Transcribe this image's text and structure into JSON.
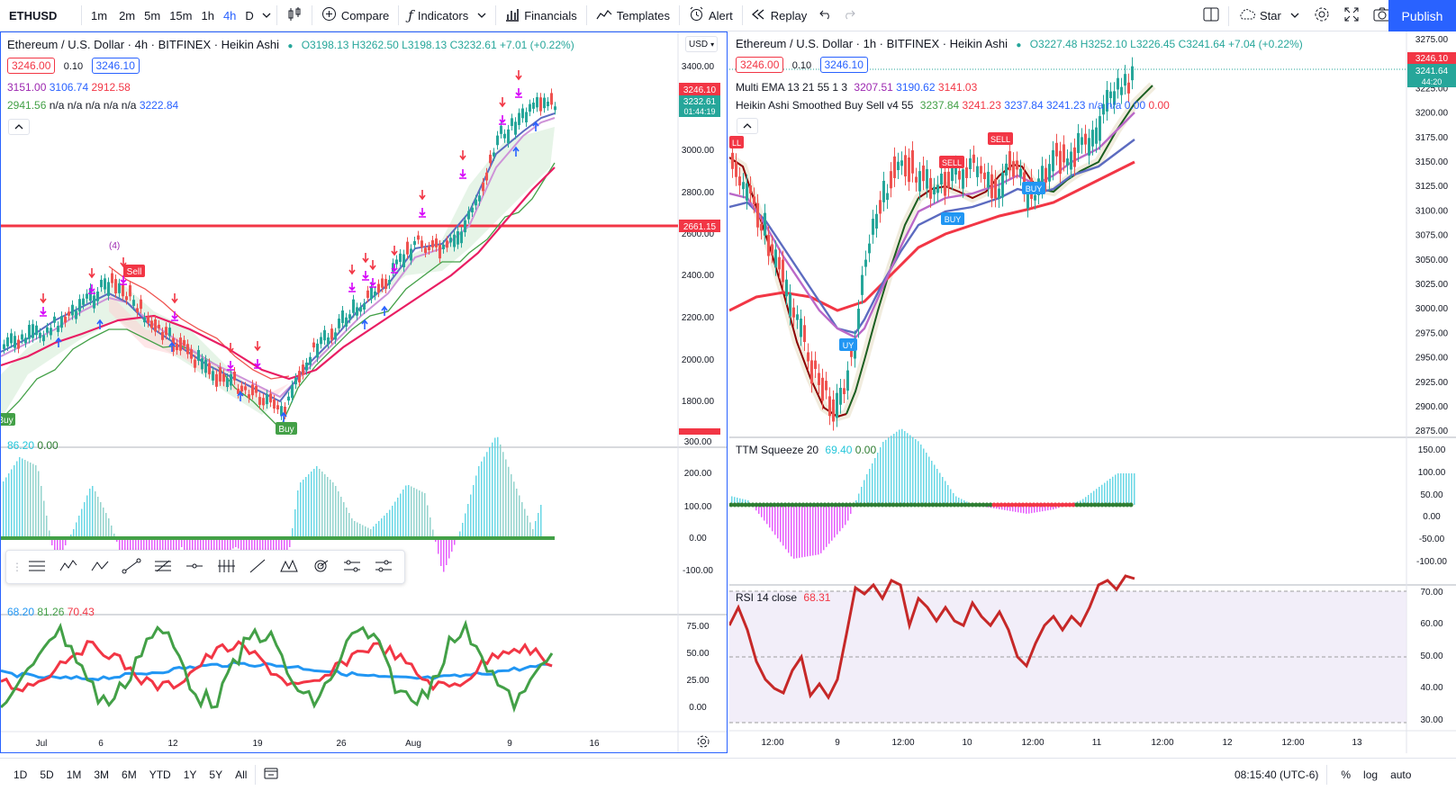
{
  "topbar": {
    "symbol": "ETHUSD",
    "intervals": [
      "1m",
      "2m",
      "5m",
      "15m",
      "1h",
      "4h",
      "D"
    ],
    "active_interval": "4h",
    "compare": "Compare",
    "indicators": "Indicators",
    "financials": "Financials",
    "templates": "Templates",
    "alert": "Alert",
    "replay": "Replay",
    "star": "Star",
    "publish": "Publish"
  },
  "left": {
    "title": "Ethereum / U.S. Dollar · 4h · BITFINEX · Heikin Ashi",
    "ohlc": {
      "o": "O3198.13",
      "h": "H3262.50",
      "l": "L3198.13",
      "c": "C3232.61",
      "chg": "+7.01 (+0.22%)"
    },
    "bid": "3246.00",
    "spread": "0.10",
    "ask": "3246.10",
    "ema_row": [
      "3151.00",
      "3106.74",
      "2912.58"
    ],
    "ind_row_a": "2941.56",
    "ind_row_b": "n/a n/a n/a n/a n/a",
    "ind_row_c": "3222.84",
    "currency": "USD",
    "price_ticks": [
      "3400.00",
      "3200.00",
      "3000.00",
      "2800.00",
      "2600.00",
      "2400.00",
      "2200.00",
      "2000.00",
      "1800.00"
    ],
    "tag_price_1": "3246.10",
    "tag_price_2": "3232.61",
    "tag_time": "01:44:19",
    "tag_line": "2661.15",
    "marker_count": "(4)",
    "sell_label": "Sell",
    "buy_label": "Buy",
    "buy_label_left": "Buy",
    "squeeze_values": [
      "86.20",
      "0.00"
    ],
    "squeeze_ticks": [
      "300.00",
      "200.00",
      "100.00",
      "0.00",
      "-100.00"
    ],
    "rsi_values": [
      "68.20",
      "81.26",
      "70.43"
    ],
    "rsi_ticks": [
      "75.00",
      "50.00",
      "25.00",
      "0.00"
    ],
    "time_ticks": [
      "Jul",
      "6",
      "12",
      "19",
      "26",
      "Aug",
      "9",
      "16"
    ]
  },
  "right": {
    "title": "Ethereum / U.S. Dollar · 1h · BITFINEX · Heikin Ashi",
    "ohlc": {
      "o": "O3227.48",
      "h": "H3252.10",
      "l": "L3226.45",
      "c": "C3241.64",
      "chg": "+7.04 (+0.22%)"
    },
    "bid": "3246.00",
    "spread": "0.10",
    "ask": "3246.10",
    "ema_label": "Multi EMA 13 21 55 1 3",
    "ema_values": [
      "3207.51",
      "3190.62",
      "3141.03"
    ],
    "ha_label": "Heikin Ashi Smoothed Buy Sell v4 55",
    "ha_values": [
      "3237.84",
      "3241.23",
      "3237.84",
      "3241.23",
      "n/a",
      "n/a",
      "0.00",
      "0.00"
    ],
    "price_ticks": [
      "3275.00",
      "3250.00",
      "3225.00",
      "3200.00",
      "3175.00",
      "3150.00",
      "3125.00",
      "3100.00",
      "3075.00",
      "3050.00",
      "3025.00",
      "3000.00",
      "2975.00",
      "2950.00",
      "2925.00",
      "2900.00",
      "2875.00"
    ],
    "tag_price_1": "3246.10",
    "tag_price_2": "3241.64",
    "tag_time": "44:20",
    "sell_labels": [
      "SELL",
      "SELL",
      "LL"
    ],
    "buy_labels": [
      "BUY",
      "BUY",
      "UY"
    ],
    "squeeze_label": "TTM Squeeze 20",
    "squeeze_values": [
      "69.40",
      "0.00"
    ],
    "squeeze_ticks": [
      "150.00",
      "100.00",
      "50.00",
      "0.00",
      "-50.00",
      "-100.00"
    ],
    "rsi_label": "RSI 14 close",
    "rsi_value": "68.31",
    "rsi_ticks": [
      "70.00",
      "60.00",
      "50.00",
      "40.00",
      "30.00"
    ],
    "time_ticks": [
      "12:00",
      "9",
      "12:00",
      "10",
      "12:00",
      "11",
      "12:00",
      "12",
      "12:00",
      "13"
    ]
  },
  "bottombar": {
    "ranges": [
      "1D",
      "5D",
      "1M",
      "3M",
      "6M",
      "YTD",
      "1Y",
      "5Y",
      "All"
    ],
    "clock": "08:15:40 (UTC-6)",
    "percent": "%",
    "log": "log",
    "auto": "auto"
  },
  "colors": {
    "accent": "#2962ff",
    "up": "#26a69a",
    "down": "#ef5350",
    "line_red": "#f23645",
    "magenta": "#e040fb"
  }
}
